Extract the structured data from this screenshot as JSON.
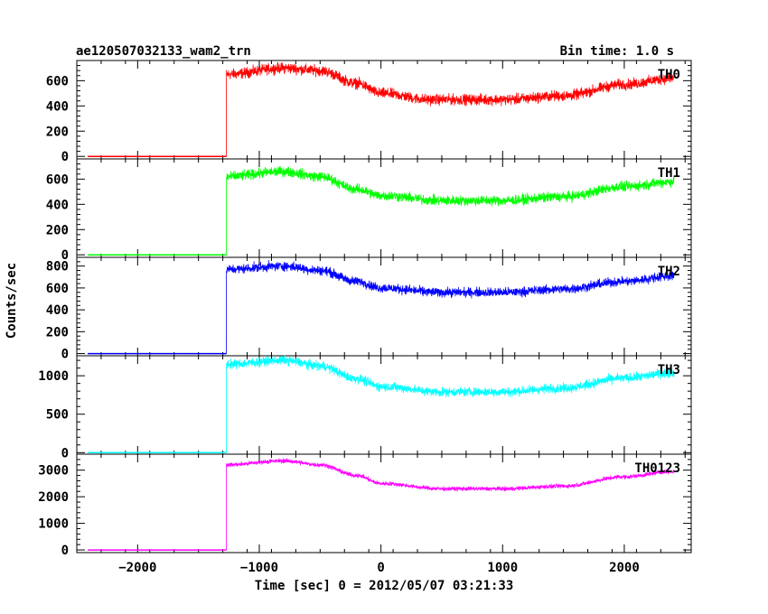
{
  "header": {
    "title": "ae120507032133_wam2_trn",
    "bin_time": "Bin time: 1.0 s"
  },
  "chart_data": {
    "type": "line",
    "xlabel": "Time [sec] 0 = 2012/05/07 03:21:33",
    "ylabel": "Counts/sec",
    "xlim": [
      -2500,
      2550
    ],
    "x_ticks": [
      -2000,
      -1000,
      0,
      1000,
      2000
    ],
    "x_tick_labels": [
      "−2000",
      "−1000",
      "0",
      "1000",
      "2000"
    ],
    "x_range_data": [
      -2410,
      2410
    ],
    "onset_time": -1270,
    "grid": false,
    "legend": "none",
    "panels": [
      {
        "name": "TH0",
        "color": "#ff0000",
        "ylim": [
          -20,
          760
        ],
        "y_ticks": [
          0,
          200,
          400,
          600
        ],
        "pre_onset_level": 0,
        "noise": 32,
        "profile": {
          "x": [
            -1270,
            -800,
            -500,
            -200,
            0,
            400,
            1000,
            1500,
            2000,
            2400
          ],
          "y": [
            650,
            700,
            680,
            580,
            500,
            450,
            450,
            480,
            570,
            620
          ]
        }
      },
      {
        "name": "TH1",
        "color": "#00ff00",
        "ylim": [
          -20,
          760
        ],
        "y_ticks": [
          0,
          200,
          400,
          600
        ],
        "pre_onset_level": 0,
        "noise": 30,
        "profile": {
          "x": [
            -1270,
            -800,
            -500,
            -200,
            0,
            500,
            1000,
            1500,
            2000,
            2400
          ],
          "y": [
            620,
            660,
            620,
            520,
            470,
            430,
            430,
            460,
            540,
            580
          ]
        }
      },
      {
        "name": "TH2",
        "color": "#0000ff",
        "ylim": [
          -20,
          880
        ],
        "y_ticks": [
          0,
          200,
          400,
          600,
          800
        ],
        "pre_onset_level": 0,
        "noise": 32,
        "profile": {
          "x": [
            -1270,
            -800,
            -500,
            -200,
            0,
            500,
            1000,
            1500,
            2000,
            2400
          ],
          "y": [
            770,
            800,
            760,
            660,
            600,
            560,
            560,
            590,
            660,
            710
          ]
        }
      },
      {
        "name": "TH3",
        "color": "#00ffff",
        "ylim": [
          -20,
          1260
        ],
        "y_ticks": [
          0,
          500,
          1000
        ],
        "pre_onset_level": 0,
        "noise": 45,
        "profile": {
          "x": [
            -1270,
            -800,
            -500,
            -200,
            0,
            500,
            1000,
            1500,
            2000,
            2400
          ],
          "y": [
            1150,
            1200,
            1130,
            960,
            860,
            790,
            790,
            840,
            970,
            1040
          ]
        }
      },
      {
        "name": "TH0123",
        "color": "#ff00ff",
        "ylim": [
          -100,
          3600
        ],
        "y_ticks": [
          0,
          1000,
          2000,
          3000
        ],
        "pre_onset_level": 0,
        "noise": 60,
        "profile": {
          "x": [
            -1270,
            -800,
            -500,
            -200,
            0,
            500,
            1000,
            1500,
            2000,
            2400
          ],
          "y": [
            3200,
            3350,
            3200,
            2800,
            2500,
            2300,
            2300,
            2400,
            2750,
            2950
          ]
        }
      }
    ]
  }
}
